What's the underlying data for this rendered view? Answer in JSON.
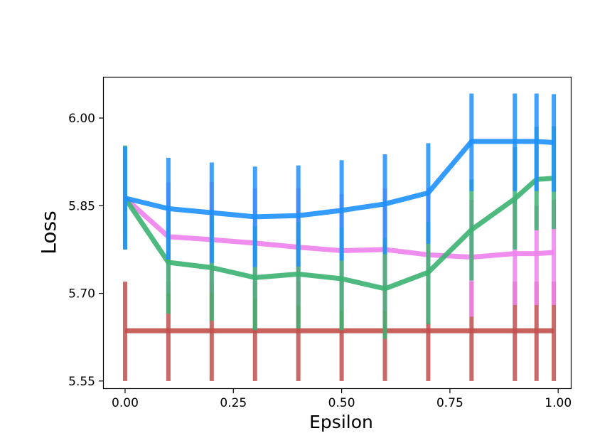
{
  "chart_data": {
    "type": "line",
    "title": "",
    "xlabel": "Epsilon",
    "ylabel": "Loss",
    "xlim": [
      -0.05,
      1.03
    ],
    "ylim": [
      5.537,
      6.07
    ],
    "x_ticks": [
      0.0,
      0.25,
      0.5,
      0.75,
      1.0
    ],
    "x_tick_labels": [
      "0.00",
      "0.25",
      "0.50",
      "0.75",
      "1.00"
    ],
    "y_ticks": [
      5.55,
      5.7,
      5.85,
      6.0
    ],
    "y_tick_labels": [
      "5.55",
      "5.70",
      "5.85",
      "6.00"
    ],
    "grid": false,
    "legend": "none",
    "x": [
      0.0,
      0.1,
      0.2,
      0.3,
      0.4,
      0.5,
      0.6,
      0.7,
      0.8,
      0.9,
      0.95,
      0.99
    ],
    "series": [
      {
        "color": "#c0504d",
        "values": [
          5.636,
          5.636,
          5.636,
          5.636,
          5.636,
          5.636,
          5.636,
          5.636,
          5.636,
          5.636,
          5.636,
          5.636
        ],
        "err_low": [
          5.55,
          5.55,
          5.55,
          5.55,
          5.55,
          5.55,
          5.55,
          5.55,
          5.55,
          5.55,
          5.55,
          5.55
        ],
        "err_high": [
          5.72,
          5.72,
          5.72,
          5.72,
          5.72,
          5.72,
          5.72,
          5.72,
          5.72,
          5.72,
          5.72,
          5.72
        ]
      },
      {
        "color": "#ee82ee",
        "values": [
          5.863,
          5.797,
          5.792,
          5.786,
          5.779,
          5.773,
          5.775,
          5.766,
          5.762,
          5.768,
          5.768,
          5.77
        ],
        "err_low": [
          5.8,
          5.7,
          5.7,
          5.69,
          5.68,
          5.67,
          5.67,
          5.65,
          5.66,
          5.68,
          5.68,
          5.68
        ],
        "err_high": [
          5.93,
          5.89,
          5.89,
          5.88,
          5.88,
          5.87,
          5.88,
          5.88,
          5.86,
          5.86,
          5.85,
          5.86
        ]
      },
      {
        "color": "#3cb371",
        "values": [
          5.863,
          5.753,
          5.744,
          5.727,
          5.733,
          5.725,
          5.708,
          5.736,
          5.809,
          5.862,
          5.895,
          5.897
        ],
        "err_low": [
          5.775,
          5.665,
          5.653,
          5.637,
          5.64,
          5.637,
          5.622,
          5.647,
          5.722,
          5.775,
          5.808,
          5.81
        ],
        "err_high": [
          5.953,
          5.84,
          5.832,
          5.815,
          5.822,
          5.812,
          5.795,
          5.822,
          5.895,
          5.95,
          5.985,
          5.986
        ]
      },
      {
        "color": "#1e90ff",
        "values": [
          5.863,
          5.845,
          5.838,
          5.831,
          5.833,
          5.842,
          5.853,
          5.872,
          5.96,
          5.96,
          5.96,
          5.958
        ],
        "err_low": [
          5.775,
          5.758,
          5.752,
          5.745,
          5.746,
          5.756,
          5.767,
          5.785,
          5.875,
          5.875,
          5.875,
          5.874
        ],
        "err_high": [
          5.951,
          5.932,
          5.924,
          5.917,
          5.919,
          5.928,
          5.938,
          5.957,
          6.042,
          6.042,
          6.042,
          6.041
        ]
      }
    ]
  }
}
